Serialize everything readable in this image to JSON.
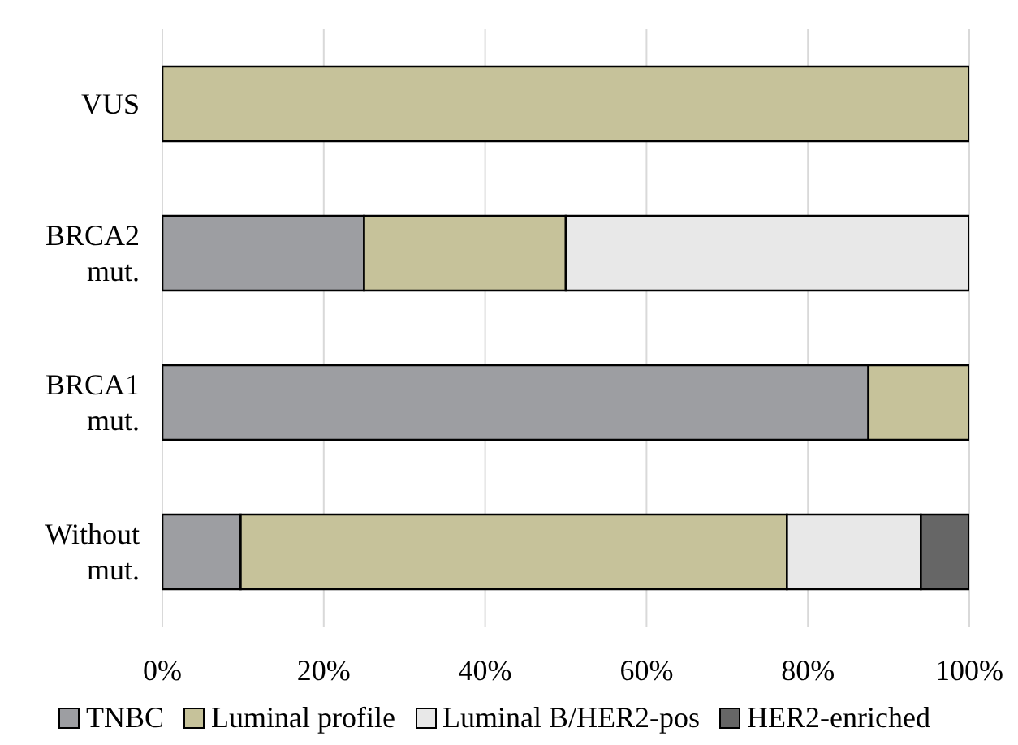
{
  "chart_data": {
    "type": "bar",
    "orientation": "horizontal",
    "stacked": true,
    "categories": [
      "VUS",
      "BRCA2 mut.",
      "BRCA1 mut.",
      "Without mut."
    ],
    "series": [
      {
        "name": "TNBC",
        "color": "#9d9ea2",
        "values": [
          null,
          25,
          87.5,
          9.7
        ]
      },
      {
        "name": "Luminal profile",
        "color": "#c6c29a",
        "values": [
          100,
          25,
          12.5,
          67.7
        ]
      },
      {
        "name": "Luminal B/HER2-pos",
        "color": "#e8e8e8",
        "values": [
          null,
          50,
          null,
          16.6
        ]
      },
      {
        "name": "HER2-enriched",
        "color": "#666666",
        "values": [
          null,
          null,
          null,
          6.0
        ]
      }
    ],
    "xlim": [
      0,
      100
    ],
    "xticks": [
      {
        "value": 0,
        "label": "0%"
      },
      {
        "value": 20,
        "label": "20%"
      },
      {
        "value": 40,
        "label": "40%"
      },
      {
        "value": 60,
        "label": "60%"
      },
      {
        "value": 80,
        "label": "80%"
      },
      {
        "value": 100,
        "label": "100%"
      }
    ],
    "grid": "x",
    "legend": "bottom"
  }
}
